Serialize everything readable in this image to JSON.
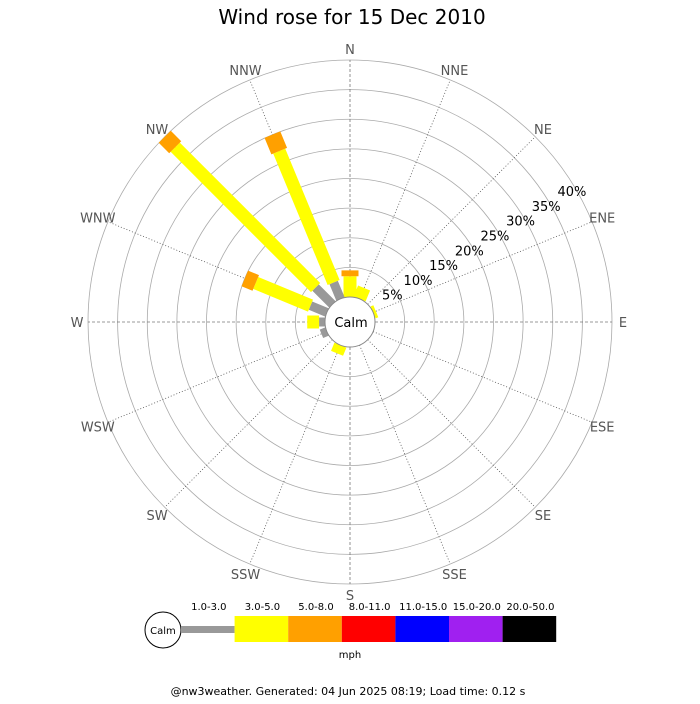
{
  "title": "Wind rose for 15 Dec 2010",
  "calm_label": "Calm",
  "unit_label": "mph",
  "footer": "@nw3weather. Generated: 04 Jun 2025 08:19; Load time: 0.12 s",
  "chart_data": {
    "type": "wind-rose",
    "title": "Wind rose for 15 Dec 2010",
    "directions": [
      "N",
      "NNE",
      "NE",
      "ENE",
      "E",
      "ESE",
      "SE",
      "SSE",
      "S",
      "SSW",
      "SW",
      "WSW",
      "W",
      "WNW",
      "NW",
      "NNW"
    ],
    "rings_percent": [
      5,
      10,
      15,
      20,
      25,
      30,
      35,
      40
    ],
    "ring_labels": [
      "5%",
      "10%",
      "15%",
      "20%",
      "25%",
      "30%",
      "35%",
      "40%"
    ],
    "speed_bins": [
      {
        "label": "1.0-3.0",
        "color": "#999999"
      },
      {
        "label": "3.0-5.0",
        "color": "#ffff00"
      },
      {
        "label": "5.0-8.0",
        "color": "#ffa000"
      },
      {
        "label": "8.0-11.0",
        "color": "#ff0000"
      },
      {
        "label": "11.0-15.0",
        "color": "#0000ff"
      },
      {
        "label": "15.0-20.0",
        "color": "#a020f0"
      },
      {
        "label": "20.0-50.0",
        "color": "#000000"
      }
    ],
    "values": {
      "N": [
        0,
        3.5,
        1.0,
        0,
        0,
        0,
        0
      ],
      "NNE": [
        0,
        2.0,
        0,
        0,
        0,
        0,
        0
      ],
      "NE": [
        0,
        0,
        0,
        0,
        0,
        0,
        0
      ],
      "ENE": [
        0,
        0.5,
        0,
        0,
        0,
        0,
        0
      ],
      "E": [
        0,
        0,
        0,
        0,
        0,
        0,
        0
      ],
      "ESE": [
        0,
        0,
        0,
        0,
        0,
        0,
        0
      ],
      "SE": [
        0,
        0,
        0,
        0,
        0,
        0,
        0
      ],
      "SSE": [
        0,
        0,
        0,
        0,
        0,
        0,
        0
      ],
      "S": [
        0,
        0,
        0,
        0,
        0,
        0,
        0
      ],
      "SSW": [
        0,
        1.5,
        0,
        0,
        0,
        0,
        0
      ],
      "SW": [
        0,
        0,
        0,
        0,
        0,
        0,
        0
      ],
      "WSW": [
        1.0,
        0,
        0,
        0,
        0,
        0,
        0
      ],
      "W": [
        1.0,
        2.0,
        0,
        0,
        0,
        0,
        0
      ],
      "WNW": [
        3.0,
        10.0,
        2.0,
        0,
        0,
        0,
        0
      ],
      "NW": [
        4.0,
        33.5,
        2.5,
        0,
        0,
        0,
        0
      ],
      "NNW": [
        3.0,
        24.0,
        3.0,
        0,
        0,
        0,
        0
      ]
    },
    "legend_position": "bottom"
  }
}
